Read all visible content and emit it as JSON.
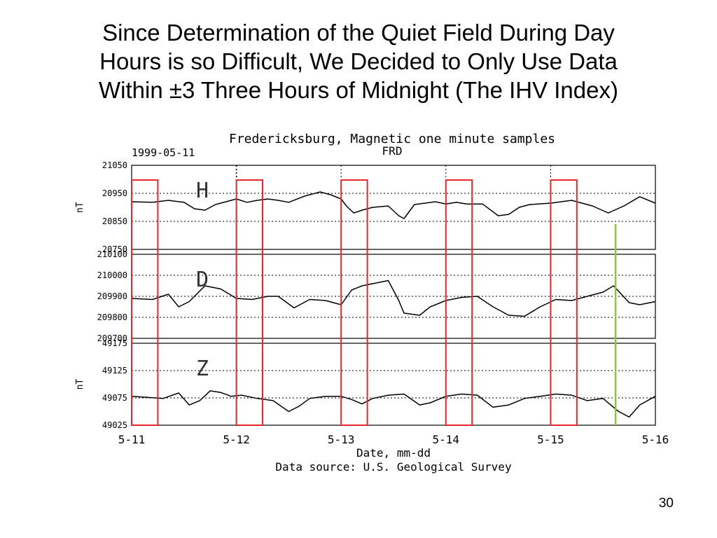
{
  "slide": {
    "title_lines": [
      "Since Determination of the Quiet Field During Day",
      "Hours is so Difficult, We Decided to Only Use Data",
      "Within ±3 Three Hours of Midnight (The IHV Index)"
    ],
    "page_number": "30"
  },
  "colors": {
    "box": "#e8262b",
    "marker": "#8cc63f",
    "trace": "#000000",
    "grid": "#000000"
  },
  "chart_data": {
    "type": "line",
    "title": "Fredericksburg, Magnetic one minute samples",
    "station": "FRD",
    "start_date": "1999-05-11",
    "xlabel": "Date, mm-dd",
    "source": "Data source: U.S. Geological Survey",
    "x_ticks": [
      "5-11",
      "5-12",
      "5-13",
      "5-14",
      "5-15",
      "5-16"
    ],
    "xlim": [
      0,
      5
    ],
    "grid": "dotted",
    "panels": [
      {
        "name": "H",
        "ylabel": "nT",
        "ylim": [
          20750,
          21050
        ],
        "yticks": [
          "21050",
          "20950",
          "20850",
          "20750"
        ],
        "x": [
          0,
          0.2,
          0.35,
          0.5,
          0.6,
          0.7,
          0.8,
          0.95,
          1.0,
          1.1,
          1.2,
          1.3,
          1.4,
          1.5,
          1.65,
          1.8,
          1.9,
          2.0,
          2.05,
          2.12,
          2.2,
          2.3,
          2.45,
          2.55,
          2.6,
          2.7,
          2.8,
          2.9,
          3.0,
          3.1,
          3.2,
          3.35,
          3.5,
          3.6,
          3.7,
          3.8,
          4.0,
          4.2,
          4.4,
          4.55,
          4.7,
          4.85,
          5.0
        ],
        "values": [
          20920,
          20918,
          20925,
          20918,
          20895,
          20890,
          20910,
          20925,
          20930,
          20918,
          20925,
          20930,
          20925,
          20918,
          20940,
          20955,
          20945,
          20930,
          20905,
          20880,
          20890,
          20900,
          20905,
          20870,
          20860,
          20910,
          20915,
          20920,
          20912,
          20918,
          20912,
          20912,
          20870,
          20875,
          20900,
          20910,
          20915,
          20925,
          20905,
          20880,
          20905,
          20938,
          20915
        ]
      },
      {
        "name": "D",
        "ylabel": "",
        "ylim": [
          209700,
          210100
        ],
        "yticks": [
          "210100",
          "210000",
          "209900",
          "209800",
          "209700"
        ],
        "x": [
          0,
          0.2,
          0.35,
          0.45,
          0.55,
          0.7,
          0.85,
          1.0,
          1.15,
          1.3,
          1.4,
          1.55,
          1.7,
          1.85,
          2.0,
          2.1,
          2.2,
          2.3,
          2.45,
          2.55,
          2.6,
          2.75,
          2.85,
          3.0,
          3.15,
          3.3,
          3.45,
          3.6,
          3.75,
          3.9,
          4.05,
          4.2,
          4.35,
          4.5,
          4.6,
          4.75,
          4.85,
          5.0
        ],
        "values": [
          209890,
          209885,
          209910,
          209850,
          209875,
          209950,
          209935,
          209890,
          209885,
          209900,
          209900,
          209845,
          209885,
          209880,
          209860,
          209930,
          209950,
          209960,
          209975,
          209880,
          209820,
          209810,
          209850,
          209880,
          209895,
          209900,
          209850,
          209810,
          209805,
          209850,
          209885,
          209880,
          209900,
          209920,
          209950,
          209870,
          209860,
          209875
        ]
      },
      {
        "name": "Z",
        "ylabel": "nT",
        "ylim": [
          49025,
          49175
        ],
        "yticks": [
          "49175",
          "49125",
          "49075",
          "49025"
        ],
        "x": [
          0,
          0.3,
          0.45,
          0.55,
          0.65,
          0.75,
          0.85,
          0.95,
          1.05,
          1.2,
          1.35,
          1.5,
          1.6,
          1.7,
          1.85,
          2.0,
          2.1,
          2.2,
          2.3,
          2.45,
          2.6,
          2.75,
          2.85,
          3.0,
          3.15,
          3.3,
          3.45,
          3.6,
          3.75,
          3.9,
          4.05,
          4.2,
          4.35,
          4.5,
          4.65,
          4.75,
          4.85,
          5.0
        ],
        "values": [
          49078,
          49074,
          49084,
          49062,
          49070,
          49088,
          49085,
          49078,
          49080,
          49074,
          49070,
          49050,
          49060,
          49074,
          49078,
          49078,
          49072,
          49064,
          49074,
          49080,
          49082,
          49062,
          49066,
          49078,
          49082,
          49080,
          49058,
          49062,
          49074,
          49078,
          49082,
          49080,
          49070,
          49074,
          49050,
          49040,
          49062,
          49078
        ]
      }
    ],
    "annotations": [
      {
        "type": "highlight_box",
        "label": "midnight window",
        "x_range": [
          0,
          0.25
        ]
      },
      {
        "type": "highlight_box",
        "label": "midnight window",
        "x_range": [
          1.0,
          1.25
        ]
      },
      {
        "type": "highlight_box",
        "label": "midnight window",
        "x_range": [
          2.0,
          2.25
        ]
      },
      {
        "type": "highlight_box",
        "label": "midnight window",
        "x_range": [
          3.0,
          3.25
        ]
      },
      {
        "type": "highlight_box",
        "label": "midnight window",
        "x_range": [
          4.0,
          4.25
        ]
      },
      {
        "type": "marker_line",
        "label": "green marker",
        "x": 4.62
      }
    ]
  }
}
